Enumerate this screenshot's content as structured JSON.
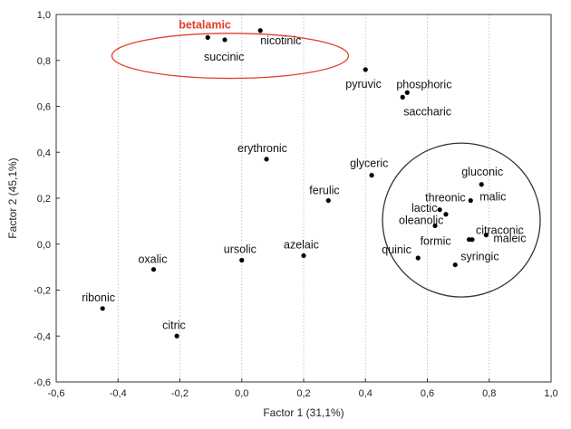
{
  "chart_data": {
    "type": "scatter",
    "xlabel": "Factor 1 (31,1%)",
    "ylabel": "Factor 2 (45,1%)",
    "xlim": [
      -0.6,
      1.0
    ],
    "ylim": [
      -0.6,
      1.0
    ],
    "x_ticks": [
      "-0,6",
      "-0,4",
      "-0,2",
      "0,0",
      "0,2",
      "0,4",
      "0,6",
      "0,8",
      "1,0"
    ],
    "y_ticks": [
      "1,0",
      "0,8",
      "0,6",
      "0,4",
      "0,2",
      "0,0",
      "-0,2",
      "-0,4",
      "-0,6"
    ],
    "grid": "vertical-dotted",
    "highlight_color": "#e0402a",
    "point_color": "#000000",
    "points": [
      {
        "label": "betalamic",
        "x": -0.11,
        "y": 0.9,
        "highlight": true
      },
      {
        "label": "nicotinic",
        "x": 0.06,
        "y": 0.93
      },
      {
        "label": "succinic",
        "x": -0.055,
        "y": 0.89
      },
      {
        "label": "pyruvic",
        "x": 0.4,
        "y": 0.76
      },
      {
        "label": "phosphoric",
        "x": 0.535,
        "y": 0.66
      },
      {
        "label": "saccharic",
        "x": 0.52,
        "y": 0.64
      },
      {
        "label": "erythronic",
        "x": 0.08,
        "y": 0.37
      },
      {
        "label": "glyceric",
        "x": 0.42,
        "y": 0.3
      },
      {
        "label": "ferulic",
        "x": 0.28,
        "y": 0.19
      },
      {
        "label": "gluconic",
        "x": 0.775,
        "y": 0.26
      },
      {
        "label": "threonic",
        "x": 0.64,
        "y": 0.15
      },
      {
        "label": "malic",
        "x": 0.74,
        "y": 0.19
      },
      {
        "label": "lactic",
        "x": 0.66,
        "y": 0.13
      },
      {
        "label": "oleanolic",
        "x": 0.625,
        "y": 0.08
      },
      {
        "label": "citraconic",
        "x": 0.745,
        "y": 0.02
      },
      {
        "label": "maleic",
        "x": 0.79,
        "y": 0.04
      },
      {
        "label": "formic",
        "x": 0.735,
        "y": 0.02
      },
      {
        "label": "syringic",
        "x": 0.69,
        "y": -0.09
      },
      {
        "label": "quinic",
        "x": 0.57,
        "y": -0.06
      },
      {
        "label": "azelaic",
        "x": 0.2,
        "y": -0.05
      },
      {
        "label": "ursolic",
        "x": 0.0,
        "y": -0.07
      },
      {
        "label": "oxalic",
        "x": -0.285,
        "y": -0.11
      },
      {
        "label": "ribonic",
        "x": -0.45,
        "y": -0.28
      },
      {
        "label": "citric",
        "x": -0.21,
        "y": -0.4
      }
    ],
    "annotations": [
      {
        "shape": "ellipse",
        "color": "#e0402a",
        "cx": -0.0375,
        "cy": 0.82,
        "rx": 0.3825,
        "ry": 0.098
      },
      {
        "shape": "ellipse",
        "color": "#333333",
        "cx": 0.71,
        "cy": 0.105,
        "rx": 0.255,
        "ry": 0.335
      }
    ]
  }
}
